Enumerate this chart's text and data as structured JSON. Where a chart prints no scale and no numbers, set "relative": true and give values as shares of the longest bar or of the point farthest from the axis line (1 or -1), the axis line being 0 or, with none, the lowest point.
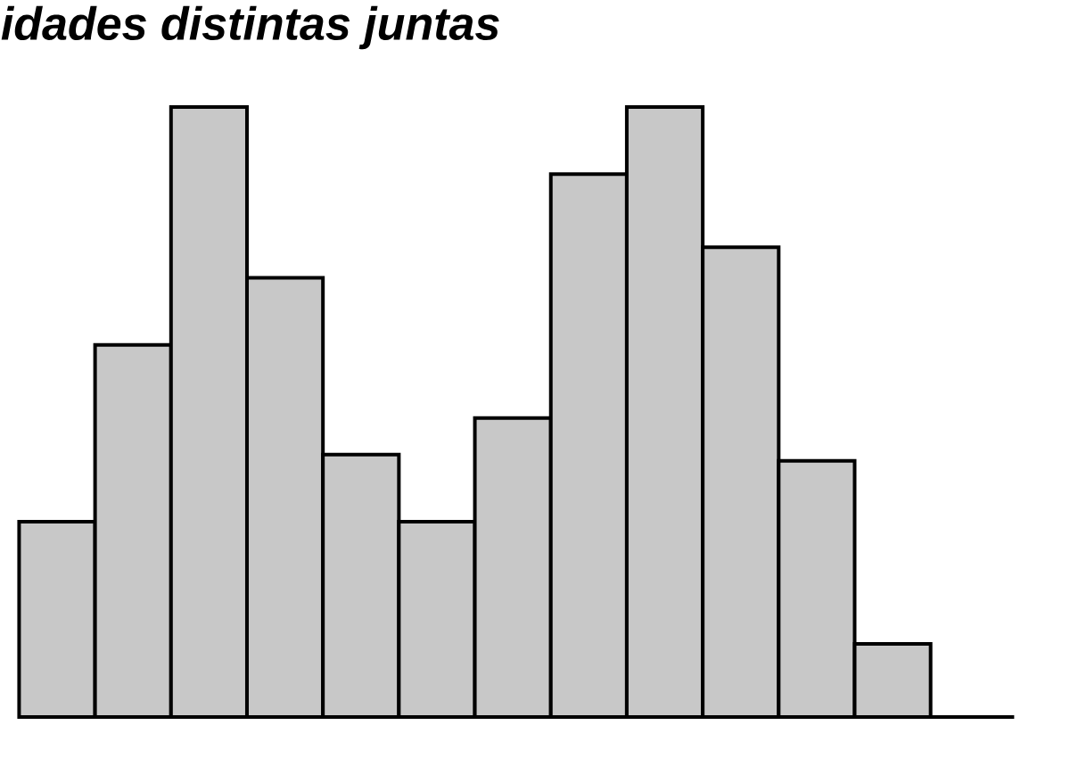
{
  "chart_data": {
    "type": "bar",
    "title": "idades distintas juntas",
    "relative": true,
    "color": "#c8c8c8",
    "categories": [
      null,
      null,
      null,
      null,
      null,
      null,
      null,
      null,
      null,
      null,
      null,
      null
    ],
    "values": [
      0.32,
      0.61,
      1,
      0.72,
      0.43,
      0.32,
      0.49,
      0.89,
      1.0,
      0.77,
      0.42,
      0.12
    ]
  }
}
